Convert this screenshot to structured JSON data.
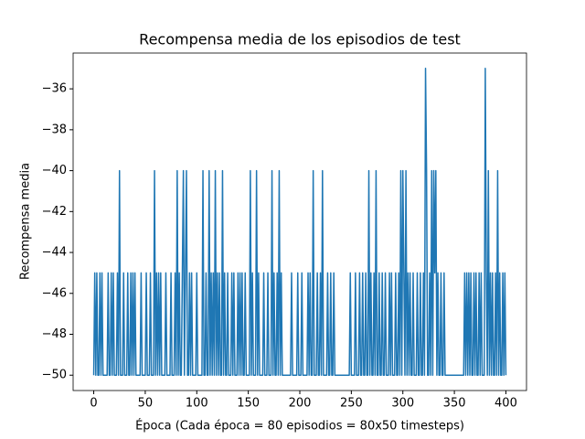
{
  "chart_data": {
    "type": "line",
    "title": "Recompensa media de los episodios de test",
    "xlabel": "Época (Cada época = 80 episodios = 80x50 timesteps)",
    "ylabel": "Recompensa media",
    "color": "#1f77b4",
    "xlim": [
      -20,
      420
    ],
    "ylim": [
      -50.75,
      -34.25
    ],
    "xticks": [
      0,
      50,
      100,
      150,
      200,
      250,
      300,
      350,
      400
    ],
    "yticks": [
      {
        "value": -50,
        "label": "−50"
      },
      {
        "value": -48,
        "label": "−48"
      },
      {
        "value": -46,
        "label": "−46"
      },
      {
        "value": -44,
        "label": "−44"
      },
      {
        "value": -42,
        "label": "−42"
      },
      {
        "value": -40,
        "label": "−40"
      },
      {
        "value": -38,
        "label": "−38"
      },
      {
        "value": -36,
        "label": "−36"
      }
    ],
    "x": [
      0,
      1,
      2,
      3,
      4,
      5,
      6,
      7,
      8,
      9,
      10,
      11,
      12,
      13,
      14,
      15,
      16,
      17,
      18,
      19,
      20,
      21,
      22,
      23,
      24,
      25,
      26,
      27,
      28,
      29,
      30,
      31,
      32,
      33,
      34,
      35,
      36,
      37,
      38,
      39,
      40,
      41,
      42,
      43,
      44,
      45,
      46,
      47,
      48,
      49,
      50,
      51,
      52,
      53,
      54,
      55,
      56,
      57,
      58,
      59,
      60,
      61,
      62,
      63,
      64,
      65,
      66,
      67,
      68,
      69,
      70,
      71,
      72,
      73,
      74,
      75,
      76,
      77,
      78,
      79,
      80,
      81,
      82,
      83,
      84,
      85,
      86,
      87,
      88,
      89,
      90,
      91,
      92,
      93,
      94,
      95,
      96,
      97,
      98,
      99,
      100,
      101,
      102,
      103,
      104,
      105,
      106,
      107,
      108,
      109,
      110,
      111,
      112,
      113,
      114,
      115,
      116,
      117,
      118,
      119,
      120,
      121,
      122,
      123,
      124,
      125,
      126,
      127,
      128,
      129,
      130,
      131,
      132,
      133,
      134,
      135,
      136,
      137,
      138,
      139,
      140,
      141,
      142,
      143,
      144,
      145,
      146,
      147,
      148,
      149,
      150,
      151,
      152,
      153,
      154,
      155,
      156,
      157,
      158,
      159,
      160,
      161,
      162,
      163,
      164,
      165,
      166,
      167,
      168,
      169,
      170,
      171,
      172,
      173,
      174,
      175,
      176,
      177,
      178,
      179,
      180,
      181,
      182,
      183,
      184,
      185,
      186,
      187,
      188,
      189,
      190,
      191,
      192,
      193,
      194,
      195,
      196,
      197,
      198,
      199,
      200,
      201,
      202,
      203,
      204,
      205,
      206,
      207,
      208,
      209,
      210,
      211,
      212,
      213,
      214,
      215,
      216,
      217,
      218,
      219,
      220,
      221,
      222,
      223,
      224,
      225,
      226,
      227,
      228,
      229,
      230,
      231,
      232,
      233,
      234,
      235,
      236,
      237,
      238,
      239,
      240,
      241,
      242,
      243,
      244,
      245,
      246,
      247,
      248,
      249,
      250,
      251,
      252,
      253,
      254,
      255,
      256,
      257,
      258,
      259,
      260,
      261,
      262,
      263,
      264,
      265,
      266,
      267,
      268,
      269,
      270,
      271,
      272,
      273,
      274,
      275,
      276,
      277,
      278,
      279,
      280,
      281,
      282,
      283,
      284,
      285,
      286,
      287,
      288,
      289,
      290,
      291,
      292,
      293,
      294,
      295,
      296,
      297,
      298,
      299,
      300,
      301,
      302,
      303,
      304,
      305,
      306,
      307,
      308,
      309,
      310,
      311,
      312,
      313,
      314,
      315,
      316,
      317,
      318,
      319,
      320,
      321,
      322,
      323,
      324,
      325,
      326,
      327,
      328,
      329,
      330,
      331,
      332,
      333,
      334,
      335,
      336,
      337,
      338,
      339,
      340,
      341,
      342,
      343,
      344,
      345,
      346,
      347,
      348,
      349,
      350,
      351,
      352,
      353,
      354,
      355,
      356,
      357,
      358,
      359,
      360,
      361,
      362,
      363,
      364,
      365,
      366,
      367,
      368,
      369,
      370,
      371,
      372,
      373,
      374,
      375,
      376,
      377,
      378,
      379,
      380,
      381,
      382,
      383,
      384,
      385,
      386,
      387,
      388,
      389,
      390,
      391,
      392,
      393,
      394,
      395,
      396,
      397,
      398,
      399,
      400
    ],
    "values": [
      -50,
      -45,
      -50,
      -45,
      -50,
      -50,
      -45,
      -50,
      -45,
      -50,
      -50,
      -50,
      -50,
      -50,
      -45,
      -50,
      -50,
      -45,
      -50,
      -45,
      -50,
      -50,
      -50,
      -45,
      -50,
      -40,
      -50,
      -50,
      -50,
      -45,
      -50,
      -50,
      -50,
      -45,
      -50,
      -50,
      -45,
      -50,
      -45,
      -50,
      -45,
      -50,
      -50,
      -50,
      -50,
      -50,
      -45,
      -50,
      -50,
      -50,
      -50,
      -45,
      -50,
      -50,
      -50,
      -45,
      -50,
      -50,
      -50,
      -40,
      -50,
      -45,
      -50,
      -45,
      -50,
      -45,
      -50,
      -50,
      -50,
      -50,
      -45,
      -50,
      -50,
      -50,
      -50,
      -45,
      -50,
      -50,
      -50,
      -45,
      -50,
      -40,
      -50,
      -45,
      -50,
      -50,
      -45,
      -40,
      -50,
      -45,
      -40,
      -50,
      -50,
      -45,
      -50,
      -45,
      -50,
      -50,
      -50,
      -50,
      -45,
      -50,
      -50,
      -50,
      -50,
      -50,
      -40,
      -50,
      -50,
      -45,
      -50,
      -50,
      -40,
      -50,
      -45,
      -50,
      -45,
      -50,
      -40,
      -50,
      -45,
      -50,
      -45,
      -50,
      -50,
      -40,
      -50,
      -45,
      -50,
      -50,
      -45,
      -50,
      -50,
      -50,
      -45,
      -50,
      -45,
      -50,
      -50,
      -50,
      -45,
      -50,
      -45,
      -50,
      -45,
      -50,
      -50,
      -45,
      -50,
      -50,
      -50,
      -50,
      -40,
      -50,
      -45,
      -50,
      -50,
      -50,
      -40,
      -50,
      -45,
      -50,
      -50,
      -50,
      -50,
      -45,
      -50,
      -50,
      -50,
      -45,
      -50,
      -50,
      -50,
      -40,
      -50,
      -45,
      -50,
      -50,
      -45,
      -50,
      -40,
      -50,
      -45,
      -50,
      -50,
      -50,
      -50,
      -50,
      -50,
      -50,
      -50,
      -50,
      -45,
      -50,
      -50,
      -50,
      -50,
      -50,
      -45,
      -50,
      -50,
      -50,
      -45,
      -50,
      -50,
      -50,
      -50,
      -50,
      -45,
      -50,
      -45,
      -50,
      -50,
      -40,
      -50,
      -50,
      -50,
      -45,
      -50,
      -50,
      -45,
      -50,
      -40,
      -50,
      -50,
      -50,
      -50,
      -45,
      -50,
      -50,
      -45,
      -50,
      -50,
      -45,
      -50,
      -50,
      -50,
      -50,
      -50,
      -50,
      -50,
      -50,
      -50,
      -50,
      -50,
      -50,
      -50,
      -50,
      -50,
      -45,
      -50,
      -50,
      -50,
      -50,
      -45,
      -50,
      -50,
      -50,
      -45,
      -50,
      -50,
      -45,
      -50,
      -50,
      -45,
      -50,
      -50,
      -40,
      -50,
      -45,
      -50,
      -50,
      -45,
      -50,
      -40,
      -50,
      -50,
      -45,
      -50,
      -50,
      -45,
      -50,
      -50,
      -45,
      -50,
      -50,
      -50,
      -45,
      -50,
      -45,
      -50,
      -50,
      -50,
      -45,
      -50,
      -50,
      -45,
      -50,
      -40,
      -50,
      -40,
      -45,
      -50,
      -40,
      -50,
      -45,
      -50,
      -45,
      -50,
      -50,
      -45,
      -50,
      -50,
      -50,
      -45,
      -50,
      -50,
      -45,
      -50,
      -50,
      -45,
      -50,
      -35,
      -40,
      -50,
      -50,
      -45,
      -50,
      -40,
      -50,
      -40,
      -45,
      -40,
      -50,
      -45,
      -50,
      -50,
      -45,
      -50,
      -50,
      -45,
      -50,
      -50,
      -50,
      -50,
      -50,
      -50,
      -50,
      -50,
      -50,
      -50,
      -50,
      -50,
      -50,
      -50,
      -50,
      -50,
      -50,
      -50,
      -50,
      -45,
      -50,
      -45,
      -50,
      -45,
      -50,
      -45,
      -50,
      -50,
      -45,
      -50,
      -45,
      -50,
      -50,
      -45,
      -50,
      -45,
      -50,
      -50,
      -50,
      -35,
      -45,
      -50,
      -40,
      -50,
      -45,
      -50,
      -45,
      -50,
      -50,
      -45,
      -50,
      -40,
      -50,
      -45,
      -50,
      -50,
      -45,
      -50,
      -45,
      -50
    ]
  }
}
